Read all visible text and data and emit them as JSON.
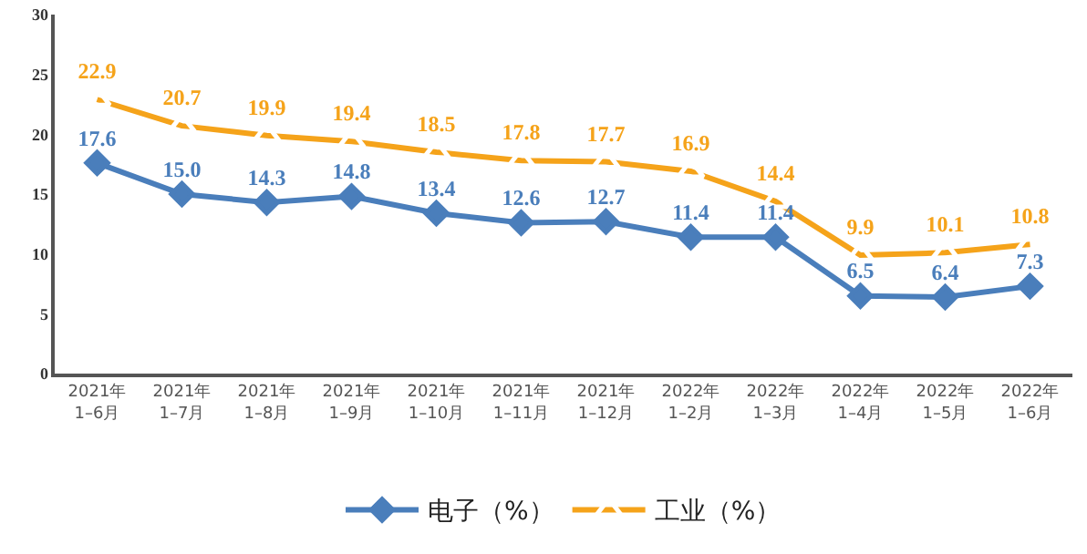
{
  "chart_data": {
    "type": "line",
    "categories": [
      "2021年\n1–6月",
      "2021年\n1–7月",
      "2021年\n1–8月",
      "2021年\n1–9月",
      "2021年\n1–10月",
      "2021年\n1–11月",
      "2021年\n1–12月",
      "2022年\n1–2月",
      "2022年\n1–3月",
      "2022年\n1–4月",
      "2022年\n1–5月",
      "2022年\n1–6月"
    ],
    "series": [
      {
        "name": "电子（%）",
        "color": "#4a7ebb",
        "marker": "diamond",
        "values": [
          17.6,
          15.0,
          14.3,
          14.8,
          13.4,
          12.6,
          12.7,
          11.4,
          11.4,
          6.5,
          6.4,
          7.3
        ],
        "value_labels": [
          "17.6",
          "15.0",
          "14.3",
          "14.8",
          "13.4",
          "12.6",
          "12.7",
          "11.4",
          "11.4",
          "6.5",
          "6.4",
          "7.3"
        ]
      },
      {
        "name": "工业（%）",
        "color": "#f5a31a",
        "marker": "triangle",
        "values": [
          22.9,
          20.7,
          19.9,
          19.4,
          18.5,
          17.8,
          17.7,
          16.9,
          14.4,
          9.9,
          10.1,
          10.8
        ],
        "value_labels": [
          "22.9",
          "20.7",
          "19.9",
          "19.4",
          "18.5",
          "17.8",
          "17.7",
          "16.9",
          "14.4",
          "9.9",
          "10.1",
          "10.8"
        ]
      }
    ],
    "ylim": [
      0,
      30
    ],
    "yticks": [
      0,
      5,
      10,
      15,
      20,
      25,
      30
    ],
    "grid": false,
    "legend": "bottom",
    "line_style": "solid"
  }
}
